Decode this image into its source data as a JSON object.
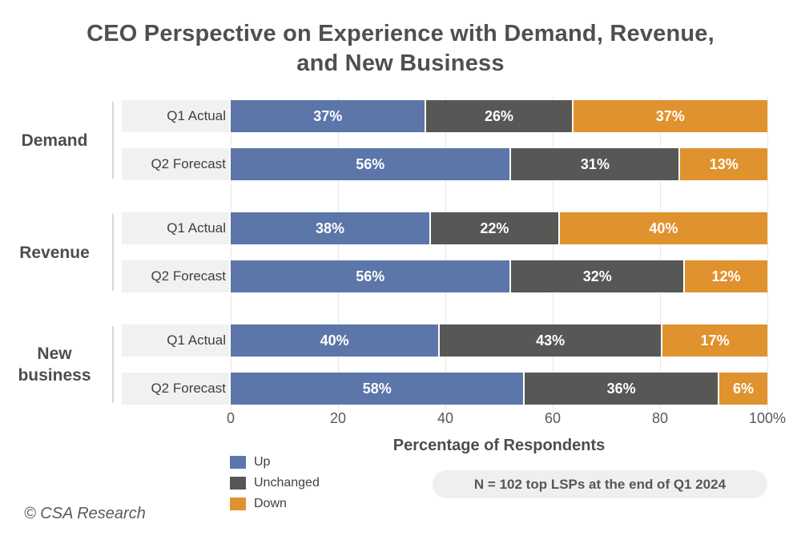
{
  "header": {
    "title_line1": "CEO Perspective on Experience with Demand, Revenue,",
    "title_line2": "and New Business"
  },
  "chart_data": {
    "type": "bar",
    "orientation": "horizontal_stacked",
    "title": "CEO Perspective on Experience with Demand, Revenue, and New Business",
    "xlabel": "Percentage of Respondents",
    "xlim": [
      0,
      100
    ],
    "grid": "vertical",
    "legend_position": "bottom-left",
    "value_suffix": "%",
    "x_ticks": [
      {
        "value": 0,
        "label": "0"
      },
      {
        "value": 20,
        "label": "20"
      },
      {
        "value": 40,
        "label": "40"
      },
      {
        "value": 60,
        "label": "60"
      },
      {
        "value": 80,
        "label": "80"
      },
      {
        "value": 100,
        "label": "100%"
      }
    ],
    "legend": [
      {
        "name": "Up",
        "color": "#5C76A9"
      },
      {
        "name": "Unchanged",
        "color": "#575756"
      },
      {
        "name": "Down",
        "color": "#E0922F"
      }
    ],
    "groups": [
      {
        "name": "Demand",
        "rows": [
          {
            "label": "Q1 Actual",
            "values": [
              37,
              26,
              37
            ]
          },
          {
            "label": "Q2 Forecast",
            "values": [
              56,
              31,
              13
            ]
          }
        ]
      },
      {
        "name": "Revenue",
        "rows": [
          {
            "label": "Q1 Actual",
            "values": [
              38,
              22,
              40
            ]
          },
          {
            "label": "Q2 Forecast",
            "values": [
              56,
              32,
              12
            ]
          }
        ]
      },
      {
        "name": "New business",
        "rows": [
          {
            "label": "Q1 Actual",
            "values": [
              40,
              43,
              17
            ]
          },
          {
            "label": "Q2 Forecast",
            "values": [
              58,
              36,
              6
            ]
          }
        ]
      }
    ],
    "note": "N = 102 top LSPs at the end of Q1 2024"
  },
  "footer": {
    "credit": "© CSA Research"
  }
}
